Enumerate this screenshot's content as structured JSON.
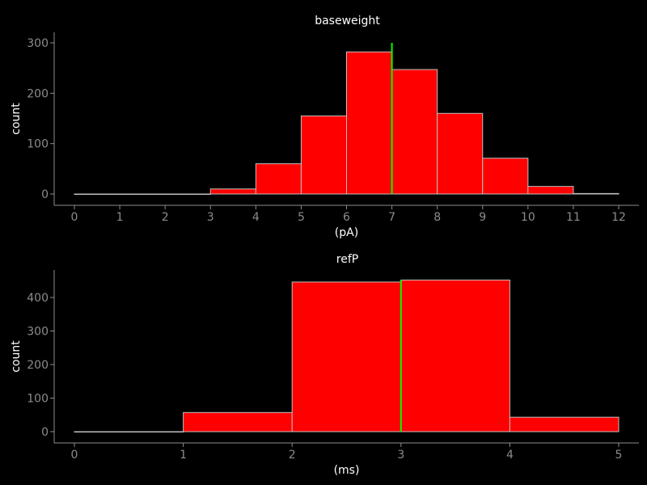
{
  "colors": {
    "background": "#000000",
    "bar_fill": "#ff0000",
    "bar_edge": "#c0c0c0",
    "marker_line": "#00ff00",
    "axis": "#8c8c8c",
    "text": "#ffffff"
  },
  "chart_data": [
    {
      "type": "bar",
      "title": "baseweight",
      "xlabel": "(pA)",
      "ylabel": "count",
      "xlim": [
        0,
        12
      ],
      "ylim": [
        0,
        300
      ],
      "xticks": [
        "0",
        "1",
        "2",
        "3",
        "4",
        "5",
        "6",
        "7",
        "8",
        "9",
        "10",
        "11",
        "12"
      ],
      "yticks": [
        "0",
        "100",
        "200",
        "300"
      ],
      "bins": [
        {
          "start": 0,
          "end": 1,
          "value": 0
        },
        {
          "start": 1,
          "end": 2,
          "value": 0
        },
        {
          "start": 2,
          "end": 3,
          "value": 0
        },
        {
          "start": 3,
          "end": 4,
          "value": 10
        },
        {
          "start": 4,
          "end": 5,
          "value": 60
        },
        {
          "start": 5,
          "end": 6,
          "value": 155
        },
        {
          "start": 6,
          "end": 7,
          "value": 282
        },
        {
          "start": 7,
          "end": 8,
          "value": 247
        },
        {
          "start": 8,
          "end": 9,
          "value": 160
        },
        {
          "start": 9,
          "end": 10,
          "value": 71
        },
        {
          "start": 10,
          "end": 11,
          "value": 15
        },
        {
          "start": 11,
          "end": 12,
          "value": 1
        }
      ],
      "vline": {
        "x": 7,
        "y_top": 300
      },
      "grid": false,
      "legend": "none"
    },
    {
      "type": "bar",
      "title": "refP",
      "xlabel": "(ms)",
      "ylabel": "count",
      "xlim": [
        0,
        5
      ],
      "ylim": [
        0,
        450
      ],
      "xticks": [
        "0",
        "1",
        "2",
        "3",
        "4",
        "5"
      ],
      "yticks": [
        "0",
        "100",
        "200",
        "300",
        "400"
      ],
      "bins": [
        {
          "start": 0,
          "end": 1,
          "value": 0
        },
        {
          "start": 1,
          "end": 2,
          "value": 57
        },
        {
          "start": 2,
          "end": 3,
          "value": 446
        },
        {
          "start": 3,
          "end": 4,
          "value": 452
        },
        {
          "start": 4,
          "end": 5,
          "value": 43
        }
      ],
      "vline": {
        "x": 3,
        "y_top": 452
      },
      "grid": false,
      "legend": "none"
    }
  ]
}
